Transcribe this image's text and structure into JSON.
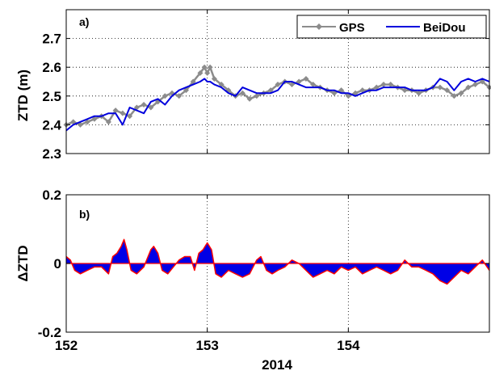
{
  "chart_data": [
    {
      "type": "line",
      "panel_label": "a)",
      "ylabel": "ZTD (m)",
      "xlabel": "",
      "xlim": [
        152,
        155
      ],
      "ylim": [
        2.3,
        2.8
      ],
      "yticks": [
        "2.3",
        "2.4",
        "2.5",
        "2.6",
        "2.7"
      ],
      "ytick_values": [
        2.3,
        2.4,
        2.5,
        2.6,
        2.7
      ],
      "xtick_values": [
        152,
        153,
        154
      ],
      "grid": true,
      "legend": "top-right",
      "series": [
        {
          "name": "GPS",
          "color": "#8c8c8c",
          "marker": "diamond",
          "x": [
            152.0,
            152.05,
            152.1,
            152.15,
            152.2,
            152.25,
            152.3,
            152.35,
            152.4,
            152.45,
            152.5,
            152.55,
            152.6,
            152.65,
            152.7,
            152.75,
            152.8,
            152.85,
            152.9,
            152.95,
            152.98,
            153.0,
            153.02,
            153.05,
            153.1,
            153.15,
            153.2,
            153.25,
            153.3,
            153.35,
            153.4,
            153.45,
            153.5,
            153.55,
            153.6,
            153.65,
            153.7,
            153.75,
            153.8,
            153.85,
            153.9,
            153.95,
            154.0,
            154.05,
            154.1,
            154.15,
            154.2,
            154.25,
            154.3,
            154.35,
            154.4,
            154.45,
            154.5,
            154.55,
            154.6,
            154.65,
            154.7,
            154.75,
            154.8,
            154.85,
            154.9,
            154.95,
            155.0
          ],
          "values": [
            2.4,
            2.41,
            2.4,
            2.41,
            2.42,
            2.43,
            2.41,
            2.45,
            2.44,
            2.43,
            2.46,
            2.47,
            2.46,
            2.48,
            2.5,
            2.51,
            2.5,
            2.52,
            2.55,
            2.58,
            2.6,
            2.58,
            2.6,
            2.56,
            2.54,
            2.52,
            2.5,
            2.51,
            2.49,
            2.5,
            2.51,
            2.52,
            2.54,
            2.55,
            2.54,
            2.55,
            2.56,
            2.54,
            2.53,
            2.52,
            2.51,
            2.52,
            2.5,
            2.51,
            2.52,
            2.52,
            2.53,
            2.54,
            2.54,
            2.53,
            2.52,
            2.52,
            2.51,
            2.52,
            2.53,
            2.53,
            2.52,
            2.5,
            2.51,
            2.53,
            2.54,
            2.55,
            2.53
          ]
        },
        {
          "name": "BeiDou",
          "color": "#0000dd",
          "marker": "none",
          "x": [
            152.0,
            152.05,
            152.1,
            152.15,
            152.2,
            152.25,
            152.3,
            152.35,
            152.4,
            152.45,
            152.5,
            152.55,
            152.6,
            152.65,
            152.7,
            152.75,
            152.8,
            152.85,
            152.9,
            152.95,
            152.98,
            153.0,
            153.02,
            153.05,
            153.1,
            153.15,
            153.2,
            153.25,
            153.3,
            153.35,
            153.4,
            153.45,
            153.5,
            153.55,
            153.6,
            153.65,
            153.7,
            153.75,
            153.8,
            153.85,
            153.9,
            153.95,
            154.0,
            154.05,
            154.1,
            154.15,
            154.2,
            154.25,
            154.3,
            154.35,
            154.4,
            154.45,
            154.5,
            154.55,
            154.6,
            154.65,
            154.7,
            154.75,
            154.8,
            154.85,
            154.9,
            154.95,
            155.0
          ],
          "values": [
            2.38,
            2.4,
            2.41,
            2.42,
            2.43,
            2.43,
            2.44,
            2.44,
            2.4,
            2.46,
            2.45,
            2.44,
            2.48,
            2.49,
            2.47,
            2.5,
            2.52,
            2.53,
            2.54,
            2.55,
            2.56,
            2.55,
            2.55,
            2.54,
            2.53,
            2.51,
            2.5,
            2.53,
            2.52,
            2.51,
            2.51,
            2.51,
            2.52,
            2.55,
            2.55,
            2.54,
            2.53,
            2.53,
            2.53,
            2.52,
            2.52,
            2.51,
            2.51,
            2.5,
            2.51,
            2.52,
            2.52,
            2.53,
            2.53,
            2.53,
            2.53,
            2.52,
            2.52,
            2.52,
            2.53,
            2.56,
            2.55,
            2.52,
            2.55,
            2.56,
            2.55,
            2.56,
            2.55
          ]
        }
      ]
    },
    {
      "type": "area",
      "panel_label": "b)",
      "ylabel": "ΔZTD",
      "xlabel": "2014",
      "xlim": [
        152,
        155
      ],
      "ylim": [
        -0.2,
        0.2
      ],
      "yticks": [
        "-0.2",
        "0",
        "0.2"
      ],
      "ytick_values": [
        -0.2,
        0,
        0.2
      ],
      "xticks": [
        "152",
        "153",
        "154"
      ],
      "xtick_values": [
        152,
        153,
        154
      ],
      "grid": true,
      "legend": "none",
      "series": [
        {
          "name": "",
          "fill_color": "#0000e6",
          "line_color": "#ff0000",
          "x": [
            152.0,
            152.03,
            152.06,
            152.1,
            152.15,
            152.2,
            152.25,
            152.3,
            152.33,
            152.36,
            152.39,
            152.41,
            152.43,
            152.46,
            152.5,
            152.55,
            152.6,
            152.62,
            152.65,
            152.68,
            152.72,
            152.76,
            152.8,
            152.84,
            152.88,
            152.91,
            152.94,
            152.97,
            153.0,
            153.03,
            153.06,
            153.1,
            153.15,
            153.2,
            153.25,
            153.3,
            153.35,
            153.38,
            153.42,
            153.46,
            153.5,
            153.55,
            153.6,
            153.65,
            153.7,
            153.75,
            153.8,
            153.85,
            153.9,
            153.95,
            154.0,
            154.05,
            154.1,
            154.15,
            154.2,
            154.25,
            154.3,
            154.35,
            154.4,
            154.45,
            154.5,
            154.55,
            154.6,
            154.65,
            154.7,
            154.75,
            154.8,
            154.85,
            154.9,
            154.95,
            155.0
          ],
          "values": [
            0.02,
            0.01,
            -0.02,
            -0.03,
            -0.02,
            -0.01,
            -0.01,
            -0.03,
            0.02,
            0.03,
            0.05,
            0.07,
            0.04,
            -0.02,
            -0.03,
            -0.01,
            0.04,
            0.05,
            0.03,
            -0.02,
            -0.03,
            -0.01,
            0.01,
            0.02,
            0.02,
            -0.02,
            0.03,
            0.04,
            0.06,
            0.04,
            -0.03,
            -0.04,
            -0.02,
            -0.03,
            -0.04,
            -0.03,
            0.01,
            0.02,
            -0.02,
            -0.03,
            -0.02,
            -0.01,
            0.01,
            0.0,
            -0.02,
            -0.04,
            -0.03,
            -0.02,
            -0.03,
            -0.01,
            -0.02,
            -0.01,
            -0.03,
            -0.02,
            -0.01,
            -0.02,
            -0.03,
            -0.02,
            0.01,
            -0.01,
            -0.01,
            -0.02,
            -0.03,
            -0.05,
            -0.06,
            -0.04,
            -0.02,
            -0.03,
            -0.01,
            0.01,
            -0.02
          ]
        }
      ]
    }
  ]
}
